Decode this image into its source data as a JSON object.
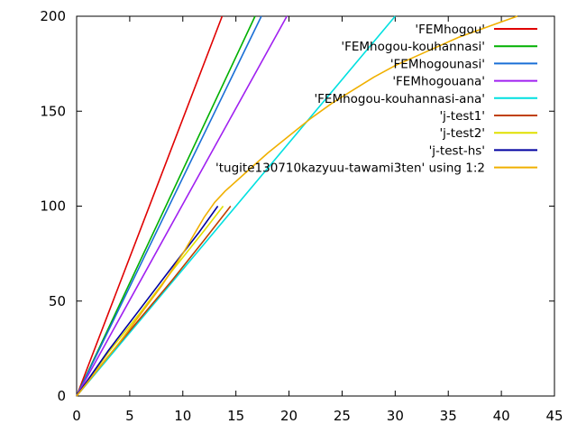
{
  "chart_data": {
    "type": "line",
    "title": "",
    "xlabel": "",
    "ylabel": "",
    "xlim": [
      0,
      45
    ],
    "ylim": [
      0,
      200
    ],
    "x_ticks": [
      0,
      5,
      10,
      15,
      20,
      25,
      30,
      35,
      40,
      45
    ],
    "y_ticks": [
      0,
      50,
      100,
      150,
      200
    ],
    "x_tick_labels": [
      "0",
      "5",
      "10",
      "15",
      "20",
      "25",
      "30",
      "35",
      "40",
      "45"
    ],
    "y_tick_labels": [
      "0",
      "50",
      "100",
      "150",
      "200"
    ],
    "grid": false,
    "legend_position": "top-right",
    "series": [
      {
        "name": "'FEMhogou'",
        "color": "#e00000",
        "points": [
          [
            0,
            0
          ],
          [
            13.7,
            200
          ]
        ]
      },
      {
        "name": "'FEMhogou-kouhannasi'",
        "color": "#00b000",
        "points": [
          [
            0,
            0
          ],
          [
            16.8,
            200
          ]
        ]
      },
      {
        "name": "'FEMhogounasi'",
        "color": "#1a6fd6",
        "points": [
          [
            0,
            0
          ],
          [
            17.4,
            200
          ]
        ]
      },
      {
        "name": "'FEMhogouana'",
        "color": "#a020f0",
        "points": [
          [
            0,
            0
          ],
          [
            19.8,
            200
          ]
        ]
      },
      {
        "name": "'FEMhogou-kouhannasi-ana'",
        "color": "#00e0e0",
        "points": [
          [
            0,
            0
          ],
          [
            30.0,
            200
          ]
        ]
      },
      {
        "name": "'j-test1'",
        "color": "#c04000",
        "points": [
          [
            0,
            0
          ],
          [
            3,
            21
          ],
          [
            6,
            41
          ],
          [
            9,
            61
          ],
          [
            12,
            82
          ],
          [
            14.5,
            100
          ]
        ]
      },
      {
        "name": "'j-test2'",
        "color": "#e0e000",
        "points": [
          [
            0,
            0
          ],
          [
            3,
            23
          ],
          [
            6,
            44
          ],
          [
            9,
            66
          ],
          [
            12,
            87
          ],
          [
            13.8,
            100
          ]
        ]
      },
      {
        "name": "'j-test-hs'",
        "color": "#0000a0",
        "points": [
          [
            0,
            0
          ],
          [
            3,
            24
          ],
          [
            6,
            46
          ],
          [
            9,
            68
          ],
          [
            11.5,
            86
          ],
          [
            13.3,
            100
          ]
        ]
      },
      {
        "name": "'tugite130710kazyuu-tawami3ten' using 1:2",
        "color": "#f0b000",
        "points": [
          [
            0,
            0
          ],
          [
            2,
            14
          ],
          [
            4,
            28
          ],
          [
            6,
            43
          ],
          [
            8,
            58
          ],
          [
            10,
            75
          ],
          [
            12,
            94
          ],
          [
            13,
            102
          ],
          [
            14,
            108
          ],
          [
            16,
            118
          ],
          [
            18,
            128
          ],
          [
            20,
            137
          ],
          [
            22,
            146
          ],
          [
            24,
            154
          ],
          [
            26,
            161
          ],
          [
            28,
            168
          ],
          [
            30,
            174
          ],
          [
            32,
            179
          ],
          [
            34,
            184
          ],
          [
            36,
            189
          ],
          [
            38,
            193
          ],
          [
            40,
            197
          ],
          [
            41.5,
            200
          ]
        ]
      }
    ]
  }
}
